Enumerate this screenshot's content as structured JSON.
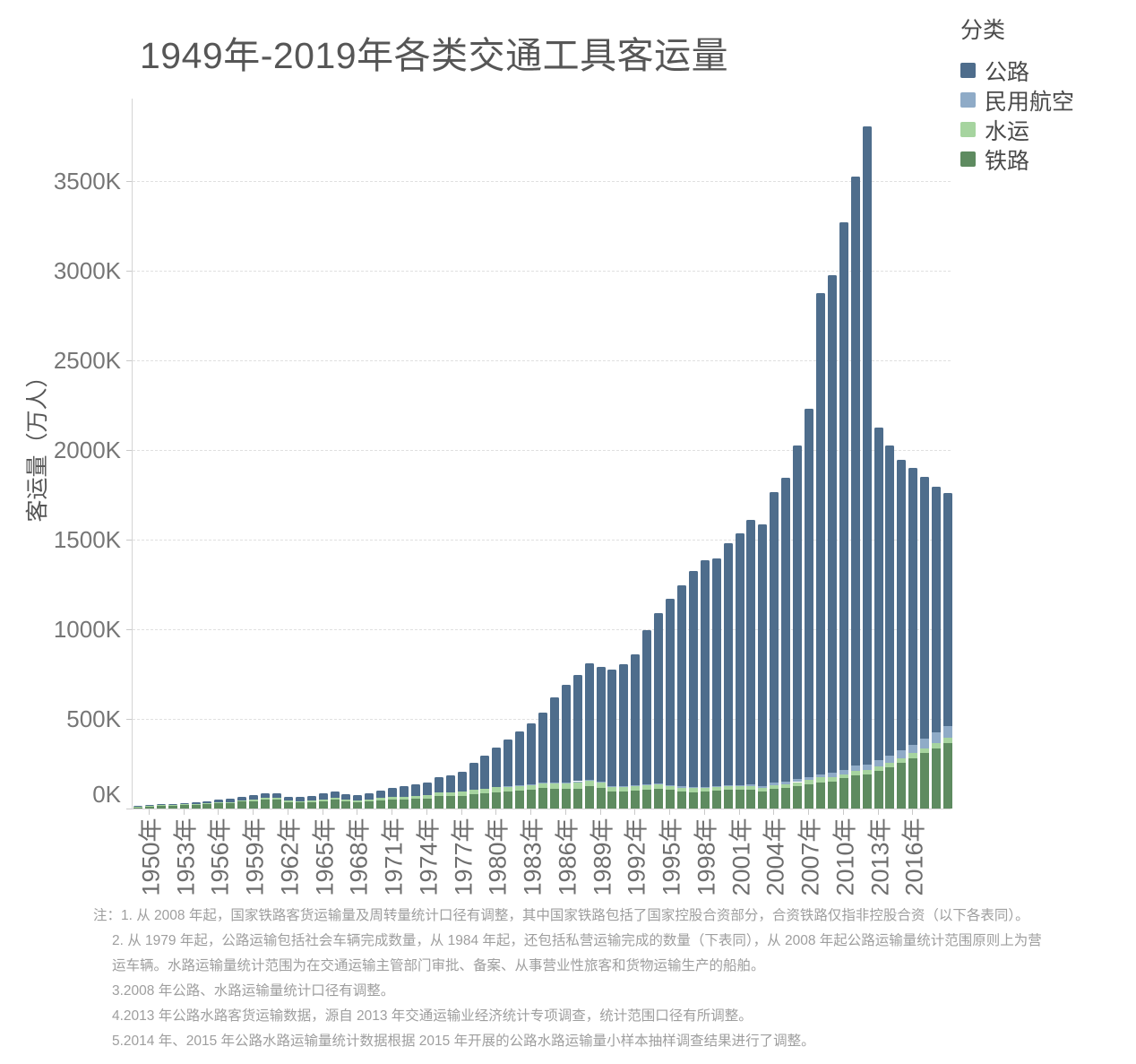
{
  "title": "1949年-2019年各类交通工具客运量",
  "legend": {
    "title": "分类",
    "items": [
      {
        "label": "公路",
        "color": "#4e6d8c"
      },
      {
        "label": "民用航空",
        "color": "#8fabc7"
      },
      {
        "label": "水运",
        "color": "#a6d49f"
      },
      {
        "label": "铁路",
        "color": "#5e8b60"
      }
    ]
  },
  "y_axis": {
    "title": "客运量（万人）",
    "ticks": [
      {
        "label": "0K",
        "value": 0
      },
      {
        "label": "500K",
        "value": 500000
      },
      {
        "label": "1000K",
        "value": 1000000
      },
      {
        "label": "1500K",
        "value": 1500000
      },
      {
        "label": "2000K",
        "value": 2000000
      },
      {
        "label": "2500K",
        "value": 2500000
      },
      {
        "label": "3000K",
        "value": 3000000
      },
      {
        "label": "3500K",
        "value": 3500000
      }
    ]
  },
  "x_axis": {
    "tick_labels": [
      {
        "year": 1950,
        "label": "1950年"
      },
      {
        "year": 1953,
        "label": "1953年"
      },
      {
        "year": 1956,
        "label": "1956年"
      },
      {
        "year": 1959,
        "label": "1959年"
      },
      {
        "year": 1962,
        "label": "1962年"
      },
      {
        "year": 1965,
        "label": "1965年"
      },
      {
        "year": 1968,
        "label": "1968年"
      },
      {
        "year": 1971,
        "label": "1971年"
      },
      {
        "year": 1974,
        "label": "1974年"
      },
      {
        "year": 1977,
        "label": "1977年"
      },
      {
        "year": 1980,
        "label": "1980年"
      },
      {
        "year": 1983,
        "label": "1983年"
      },
      {
        "year": 1986,
        "label": "1986年"
      },
      {
        "year": 1989,
        "label": "1989年"
      },
      {
        "year": 1992,
        "label": "1992年"
      },
      {
        "year": 1995,
        "label": "1995年"
      },
      {
        "year": 1998,
        "label": "1998年"
      },
      {
        "year": 2001,
        "label": "2001年"
      },
      {
        "year": 2004,
        "label": "2004年"
      },
      {
        "year": 2007,
        "label": "2007年"
      },
      {
        "year": 2010,
        "label": "2010年"
      },
      {
        "year": 2013,
        "label": "2013年"
      },
      {
        "year": 2016,
        "label": "2016年"
      }
    ]
  },
  "chart_data": {
    "type": "bar",
    "stacked": true,
    "title": "1949年-2019年各类交通工具客运量",
    "xlabel": "",
    "ylabel": "客运量（万人）",
    "unit": "万人",
    "ylim": [
      0,
      3960000
    ],
    "grid": "horizontal-dashed",
    "legend_position": "top-right",
    "x": [
      1949,
      1950,
      1951,
      1952,
      1953,
      1954,
      1955,
      1956,
      1957,
      1958,
      1959,
      1960,
      1961,
      1962,
      1963,
      1964,
      1965,
      1966,
      1967,
      1968,
      1969,
      1970,
      1971,
      1972,
      1973,
      1974,
      1975,
      1976,
      1977,
      1978,
      1979,
      1980,
      1981,
      1982,
      1983,
      1984,
      1985,
      1986,
      1987,
      1988,
      1989,
      1990,
      1991,
      1992,
      1993,
      1994,
      1995,
      1996,
      1997,
      1998,
      1999,
      2000,
      2001,
      2002,
      2003,
      2004,
      2005,
      2006,
      2007,
      2008,
      2009,
      2010,
      2011,
      2012,
      2013,
      2014,
      2015,
      2016,
      2017,
      2018,
      2019
    ],
    "series": [
      {
        "name": "铁路",
        "color": "#5e8b60",
        "values": [
          10300,
          13900,
          16400,
          16300,
          19900,
          22400,
          24600,
          30300,
          31300,
          38100,
          42200,
          50600,
          49800,
          35300,
          33900,
          36500,
          41300,
          48900,
          39000,
          35700,
          40500,
          46400,
          49000,
          52000,
          54200,
          55000,
          70500,
          69100,
          71900,
          81500,
          85600,
          92200,
          95300,
          99900,
          106000,
          113400,
          112100,
          108500,
          112400,
          122600,
          113800,
          95700,
          95100,
          99700,
          105500,
          108700,
          102700,
          94800,
          92500,
          95000,
          100100,
          105100,
          105200,
          105600,
          97300,
          111800,
          115600,
          125600,
          135700,
          146200,
          152500,
          167600,
          186200,
          189300,
          210600,
          230500,
          253500,
          281400,
          308400,
          337500,
          366000
        ]
      },
      {
        "name": "水运",
        "color": "#a6d49f",
        "values": [
          1500,
          1900,
          2700,
          3600,
          4500,
          4800,
          5100,
          5600,
          6200,
          7400,
          9000,
          10200,
          10500,
          8400,
          8600,
          9200,
          11000,
          11600,
          9500,
          9300,
          10500,
          12800,
          14200,
          15500,
          17000,
          18000,
          19100,
          20000,
          21000,
          23000,
          25000,
          26400,
          27900,
          29300,
          29700,
          30800,
          30800,
          34300,
          38900,
          35000,
          32700,
          27200,
          26100,
          26600,
          27300,
          26200,
          23900,
          22400,
          22600,
          20500,
          19000,
          19400,
          17900,
          18700,
          17100,
          19100,
          20200,
          22000,
          22800,
          27000,
          22300,
          22400,
          24600,
          25800,
          23500,
          26300,
          27100,
          27200,
          28300,
          28000,
          27300
        ]
      },
      {
        "name": "民用航空",
        "color": "#8fabc7",
        "values": [
          1,
          1,
          1,
          2,
          2,
          4,
          5,
          6,
          7,
          9,
          12,
          14,
          12,
          10,
          10,
          12,
          27,
          25,
          16,
          13,
          16,
          22,
          25,
          44,
          55,
          70,
          139,
          124,
          149,
          231,
          298,
          343,
          401,
          445,
          391,
          554,
          747,
          997,
          1310,
          1442,
          1283,
          1660,
          2178,
          2886,
          3383,
          4039,
          5117,
          5555,
          5630,
          5755,
          6094,
          6722,
          7524,
          8594,
          8759,
          12123,
          13827,
          15968,
          18576,
          19251,
          23052,
          26769,
          29317,
          31936,
          35397,
          39195,
          43618,
          48796,
          55156,
          61174,
          66000
        ]
      },
      {
        "name": "公路",
        "color": "#4e6d8c",
        "values": [
          1800,
          2300,
          4000,
          4600,
          5900,
          7700,
          8400,
          12000,
          15200,
          18100,
          22200,
          25600,
          23000,
          23000,
          24000,
          26600,
          33700,
          35000,
          31000,
          30000,
          36000,
          43000,
          50000,
          58000,
          65000,
          73000,
          86000,
          97000,
          112000,
          149200,
          183900,
          222800,
          261700,
          300600,
          336900,
          390300,
          476400,
          544300,
          594000,
          650400,
          644100,
          648100,
          681500,
          731200,
          860400,
          953000,
          1040800,
          1122200,
          1204500,
          1264300,
          1269000,
          1347400,
          1402700,
          1475100,
          1464200,
          1624500,
          1697400,
          1860500,
          2050700,
          2682100,
          2779100,
          3052700,
          3286200,
          3557000,
          1853500,
          1728700,
          1619100,
          1542800,
          1456800,
          1367200,
          1301200
        ]
      }
    ]
  },
  "footnotes": [
    "注：1. 从 2008 年起，国家铁路客货运输量及周转量统计口径有调整，其中国家铁路包括了国家控股合资部分，合资铁路仅指非控股合资（以下各表同）。",
    "2. 从 1979 年起，公路运输包括社会车辆完成数量，从 1984 年起，还包括私营运输完成的数量（下表同），从 2008 年起公路运输量统计范围原则上为营",
    "运车辆。水路运输量统计范围为在交通运输主管部门审批、备案、从事营业性旅客和货物运输生产的船舶。",
    "3.2008 年公路、水路运输量统计口径有调整。",
    "4.2013 年公路水路客货运输数据，源自 2013 年交通运输业经济统计专项调查，统计范围口径有所调整。",
    "5.2014 年、2015 年公路水路运输量统计数据根据 2015 年开展的公路水路运输量小样本抽样调查结果进行了调整。"
  ]
}
